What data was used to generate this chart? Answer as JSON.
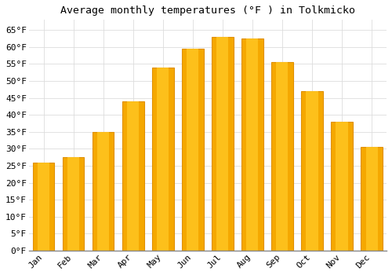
{
  "title": "Average monthly temperatures (°F ) in Tolkmicko",
  "months": [
    "Jan",
    "Feb",
    "Mar",
    "Apr",
    "May",
    "Jun",
    "Jul",
    "Aug",
    "Sep",
    "Oct",
    "Nov",
    "Dec"
  ],
  "values": [
    26,
    27.5,
    35,
    44,
    54,
    59.5,
    63,
    62.5,
    55.5,
    47,
    38,
    30.5
  ],
  "bar_color_inner": "#FFC520",
  "bar_color_outer": "#F5A800",
  "bar_edge_color": "#E09000",
  "background_color": "#FFFFFF",
  "grid_color": "#DDDDDD",
  "ylim": [
    0,
    68
  ],
  "yticks": [
    0,
    5,
    10,
    15,
    20,
    25,
    30,
    35,
    40,
    45,
    50,
    55,
    60,
    65
  ],
  "title_fontsize": 9.5,
  "tick_fontsize": 8,
  "font_family": "monospace"
}
